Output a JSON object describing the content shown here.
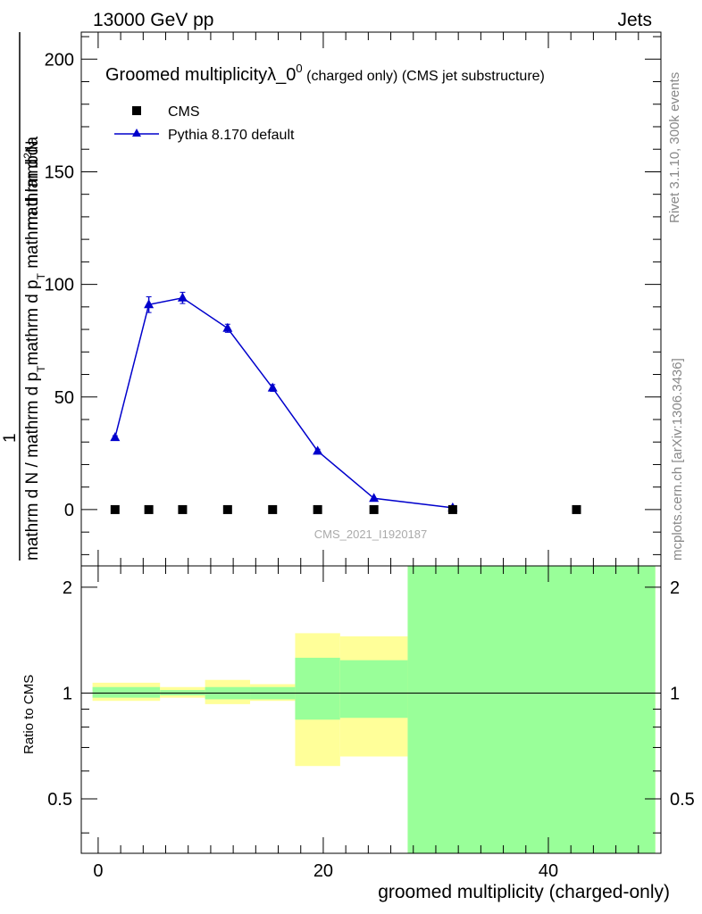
{
  "header": {
    "left": "13000 GeV pp",
    "right": "Jets"
  },
  "title": {
    "main": "Groomed multiplicity",
    "lambda": "λ_0",
    "sup": "0",
    "sub": "(charged only) (CMS jet substructure)"
  },
  "side_labels": {
    "rivet": "Rivet 3.1.10,  300k events",
    "mcplots": "mcplots.cern.ch [arXiv:1306.3436]"
  },
  "watermark": "CMS_2021_I1920187",
  "ylabel": {
    "numerator": "mathrm d",
    "numerator_sup": "2",
    "numerator_end": "N",
    "one": "1",
    "denominator_a": "mathrm d N / mathrm d p",
    "denominator_a_sub": "T",
    "denominator_b": "mathrm d p",
    "denominator_b_sub": "T",
    "denominator_c": "mathrm d lambda"
  },
  "ratio_ylabel": "Ratio to CMS",
  "xlabel": "groomed multiplicity (charged-only)",
  "legend": [
    {
      "label": "CMS",
      "marker": "square",
      "color": "#000000"
    },
    {
      "label": "Pythia 8.170 default",
      "marker": "triangle",
      "color": "#0000cc"
    }
  ],
  "chart_data": [
    {
      "type": "scatter",
      "panel": "main",
      "ylim": [
        -25,
        212
      ],
      "yticks": [
        0,
        50,
        100,
        150,
        200
      ],
      "xlim": [
        -1.5,
        50
      ],
      "series": [
        {
          "name": "CMS",
          "x": [
            1.5,
            4.5,
            7.5,
            11.5,
            15.5,
            19.5,
            24.5,
            31.5,
            42.5
          ],
          "y": [
            0,
            0,
            0,
            0,
            0,
            0,
            0,
            0,
            0
          ]
        },
        {
          "name": "Pythia 8.170 default",
          "x": [
            1.5,
            4.5,
            7.5,
            11.5,
            15.5,
            19.5,
            24.5,
            31.5
          ],
          "y": [
            32,
            91,
            94,
            80.5,
            54,
            26,
            5,
            0.8
          ],
          "yerr": [
            0.8,
            3.5,
            2.5,
            1.8,
            1.5,
            0.8,
            0.3,
            0.1
          ]
        }
      ]
    },
    {
      "type": "area",
      "panel": "ratio",
      "ylim": [
        0.35,
        2.3
      ],
      "yticks": [
        0.5,
        1,
        2
      ],
      "xlim": [
        -1.5,
        50
      ],
      "xticks": [
        0,
        20,
        40
      ],
      "reference": 1,
      "bins": [
        {
          "x0": -0.5,
          "x1": 5.5,
          "green": [
            0.97,
            1.04
          ],
          "yellow": [
            0.95,
            1.07
          ]
        },
        {
          "x0": 5.5,
          "x1": 9.5,
          "green": [
            0.985,
            1.02
          ],
          "yellow": [
            0.97,
            1.04
          ]
        },
        {
          "x0": 9.5,
          "x1": 13.5,
          "green": [
            0.96,
            1.04
          ],
          "yellow": [
            0.93,
            1.09
          ]
        },
        {
          "x0": 13.5,
          "x1": 17.5,
          "green": [
            0.96,
            1.04
          ],
          "yellow": [
            0.95,
            1.06
          ]
        },
        {
          "x0": 17.5,
          "x1": 21.5,
          "green": [
            0.84,
            1.26
          ],
          "yellow": [
            0.62,
            1.48
          ]
        },
        {
          "x0": 21.5,
          "x1": 27.5,
          "green": [
            0.85,
            1.24
          ],
          "yellow": [
            0.66,
            1.45
          ]
        },
        {
          "x0": 27.5,
          "x1": 49.5,
          "green": [
            0.3,
            2.4
          ],
          "yellow": [
            0.3,
            2.4
          ]
        }
      ]
    }
  ]
}
